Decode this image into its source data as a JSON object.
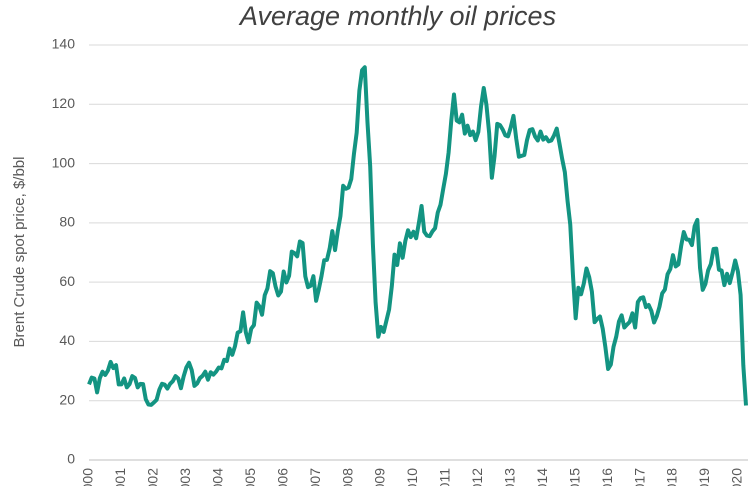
{
  "chart_data": {
    "type": "line",
    "title": "Average monthly oil prices",
    "y_label": "Brent Crude spot price, $/bbl",
    "categories": [
      "2000",
      null,
      null,
      null,
      null,
      null,
      null,
      null,
      null,
      null,
      null,
      null,
      "2001",
      null,
      null,
      null,
      null,
      null,
      null,
      null,
      null,
      null,
      null,
      null,
      "2002",
      null,
      null,
      null,
      null,
      null,
      null,
      null,
      null,
      null,
      null,
      null,
      "2003",
      null,
      null,
      null,
      null,
      null,
      null,
      null,
      null,
      null,
      null,
      null,
      "2004",
      null,
      null,
      null,
      null,
      null,
      null,
      null,
      null,
      null,
      null,
      null,
      "2005",
      null,
      null,
      null,
      null,
      null,
      null,
      null,
      null,
      null,
      null,
      null,
      "2006",
      null,
      null,
      null,
      null,
      null,
      null,
      null,
      null,
      null,
      null,
      null,
      "2007",
      null,
      null,
      null,
      null,
      null,
      null,
      null,
      null,
      null,
      null,
      null,
      "2008",
      null,
      null,
      null,
      null,
      null,
      null,
      null,
      null,
      null,
      null,
      null,
      "2009",
      null,
      null,
      null,
      null,
      null,
      null,
      null,
      null,
      null,
      null,
      null,
      "2010",
      null,
      null,
      null,
      null,
      null,
      null,
      null,
      null,
      null,
      null,
      null,
      "2011",
      null,
      null,
      null,
      null,
      null,
      null,
      null,
      null,
      null,
      null,
      null,
      "2012",
      null,
      null,
      null,
      null,
      null,
      null,
      null,
      null,
      null,
      null,
      null,
      "2013",
      null,
      null,
      null,
      null,
      null,
      null,
      null,
      null,
      null,
      null,
      null,
      "2014",
      null,
      null,
      null,
      null,
      null,
      null,
      null,
      null,
      null,
      null,
      null,
      "2015",
      null,
      null,
      null,
      null,
      null,
      null,
      null,
      null,
      null,
      null,
      null,
      "2016",
      null,
      null,
      null,
      null,
      null,
      null,
      null,
      null,
      null,
      null,
      null,
      "2017",
      null,
      null,
      null,
      null,
      null,
      null,
      null,
      null,
      null,
      null,
      null,
      "2018",
      null,
      null,
      null,
      null,
      null,
      null,
      null,
      null,
      null,
      null,
      null,
      "2019",
      null,
      null,
      null,
      null,
      null,
      null,
      null,
      null,
      null,
      null,
      null,
      "2020",
      null,
      null,
      null
    ],
    "values": [
      25.5,
      27.8,
      27.5,
      22.8,
      27.6,
      29.8,
      28.7,
      30.2,
      33.1,
      31.0,
      32.0,
      25.5,
      25.5,
      27.5,
      24.5,
      25.6,
      28.3,
      27.7,
      24.5,
      25.7,
      25.6,
      20.5,
      18.7,
      18.6,
      19.4,
      20.3,
      23.7,
      25.7,
      25.4,
      24.1,
      25.7,
      26.6,
      28.3,
      27.5,
      24.2,
      28.2,
      31.2,
      32.8,
      30.3,
      25.0,
      25.8,
      27.6,
      28.4,
      29.8,
      27.1,
      29.6,
      28.8,
      29.8,
      31.2,
      30.9,
      33.8,
      33.4,
      37.6,
      35.5,
      38.4,
      43.0,
      43.4,
      49.8,
      43.1,
      39.7,
      44.3,
      45.5,
      53.1,
      51.9,
      49.0,
      55.6,
      57.9,
      63.7,
      63.0,
      58.5,
      55.5,
      56.8,
      63.6,
      59.9,
      62.1,
      70.3,
      69.8,
      68.7,
      73.7,
      73.2,
      62.0,
      58.3,
      58.8,
      62.0,
      53.7,
      57.6,
      62.1,
      67.4,
      67.5,
      71.3,
      77.2,
      70.8,
      77.1,
      82.3,
      92.5,
      91.5,
      91.9,
      94.8,
      103.3,
      110.4,
      124.6,
      131.5,
      132.5,
      113.9,
      99.1,
      72.8,
      53.2,
      41.6,
      44.9,
      43.2,
      47.0,
      50.8,
      58.6,
      69.3,
      65.8,
      73.1,
      68.2,
      73.9,
      77.5,
      75.2,
      77.0,
      74.8,
      79.9,
      85.7,
      77.0,
      75.7,
      75.5,
      77.1,
      78.2,
      83.5,
      86.1,
      91.4,
      96.5,
      103.7,
      114.6,
      123.3,
      114.5,
      113.9,
      116.5,
      110.1,
      112.8,
      109.6,
      110.8,
      107.9,
      110.7,
      119.3,
      125.5,
      119.8,
      110.3,
      95.2,
      102.6,
      113.4,
      113.0,
      111.5,
      109.5,
      109.2,
      112.3,
      116.1,
      108.5,
      102.3,
      102.6,
      102.9,
      107.9,
      111.3,
      111.6,
      109.1,
      107.8,
      110.8,
      108.1,
      108.9,
      107.5,
      107.8,
      109.5,
      111.8,
      106.8,
      101.6,
      97.1,
      87.4,
      79.4,
      62.3,
      47.8,
      58.1,
      55.9,
      59.5,
      64.6,
      61.7,
      56.8,
      46.5,
      47.6,
      48.4,
      44.3,
      38.0,
      30.7,
      32.2,
      38.2,
      41.6,
      46.7,
      48.8,
      44.7,
      45.7,
      46.6,
      49.5,
      44.7,
      53.3,
      54.6,
      54.9,
      51.6,
      52.3,
      50.3,
      46.4,
      48.5,
      51.7,
      56.2,
      57.5,
      62.7,
      64.4,
      69.1,
      65.3,
      66.0,
      72.1,
      76.9,
      74.4,
      74.3,
      72.5,
      78.9,
      81.0,
      64.8,
      57.4,
      59.4,
      64.0,
      66.1,
      71.2,
      71.3,
      64.2,
      63.9,
      59.0,
      62.8,
      59.7,
      63.2,
      67.3,
      63.6,
      55.7,
      32.0,
      18.4
    ],
    "color": "#139482",
    "ylim": [
      0,
      140
    ],
    "yticks": [
      0,
      20,
      40,
      60,
      80,
      100,
      120,
      140
    ],
    "grid": true
  }
}
